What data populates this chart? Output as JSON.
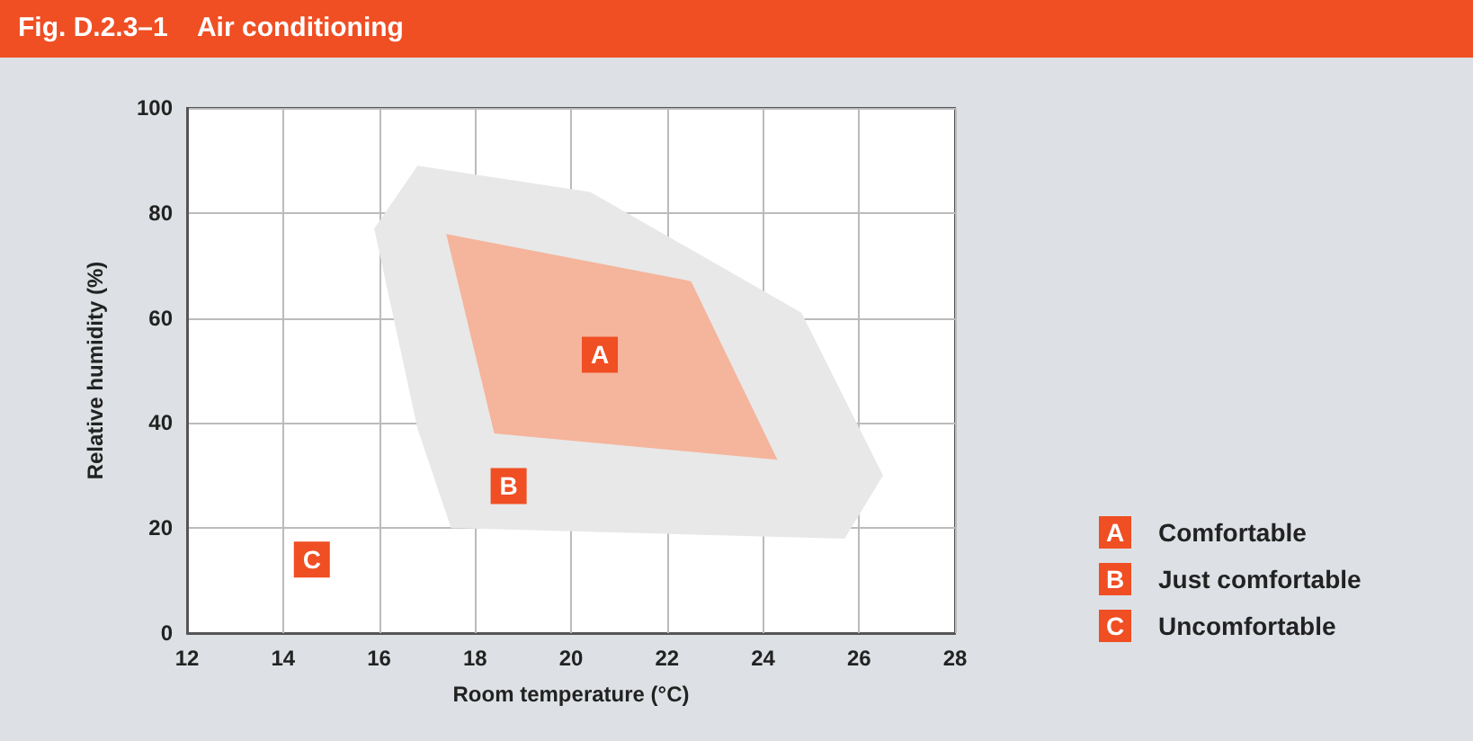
{
  "chart_data": {
    "type": "area",
    "title": "Fig. D.2.3–1    Air conditioning",
    "xlabel": "Room temperature (°C)",
    "ylabel": "Relative humidity (%)",
    "series": [
      {
        "color": "#e8e8e8",
        "x": [
          15.9,
          16.8,
          20.4,
          24.8,
          26.5,
          25.7,
          17.5,
          16.8
        ],
        "values": [
          77,
          89,
          84,
          61,
          30,
          18,
          20,
          39
        ]
      },
      {
        "color": "#f5b49c",
        "x": [
          17.4,
          22.5,
          24.3,
          18.4
        ],
        "values": [
          76,
          67,
          33,
          38
        ]
      }
    ],
    "annotations": [
      {
        "text": "A",
        "x": 20.6,
        "y": 53
      },
      {
        "text": "B",
        "x": 18.7,
        "y": 28
      },
      {
        "text": "C",
        "x": 14.6,
        "y": 14
      },
      "Comfortable",
      "Just comfortable",
      "Uncomfortable"
    ],
    "xlim": [
      12,
      28
    ],
    "xticks": [
      12,
      14,
      16,
      18,
      20,
      22,
      24,
      26,
      28
    ],
    "ylim": [
      0,
      100
    ],
    "yticks": [
      0,
      20,
      40,
      60,
      80,
      100
    ],
    "grid": true
  }
}
